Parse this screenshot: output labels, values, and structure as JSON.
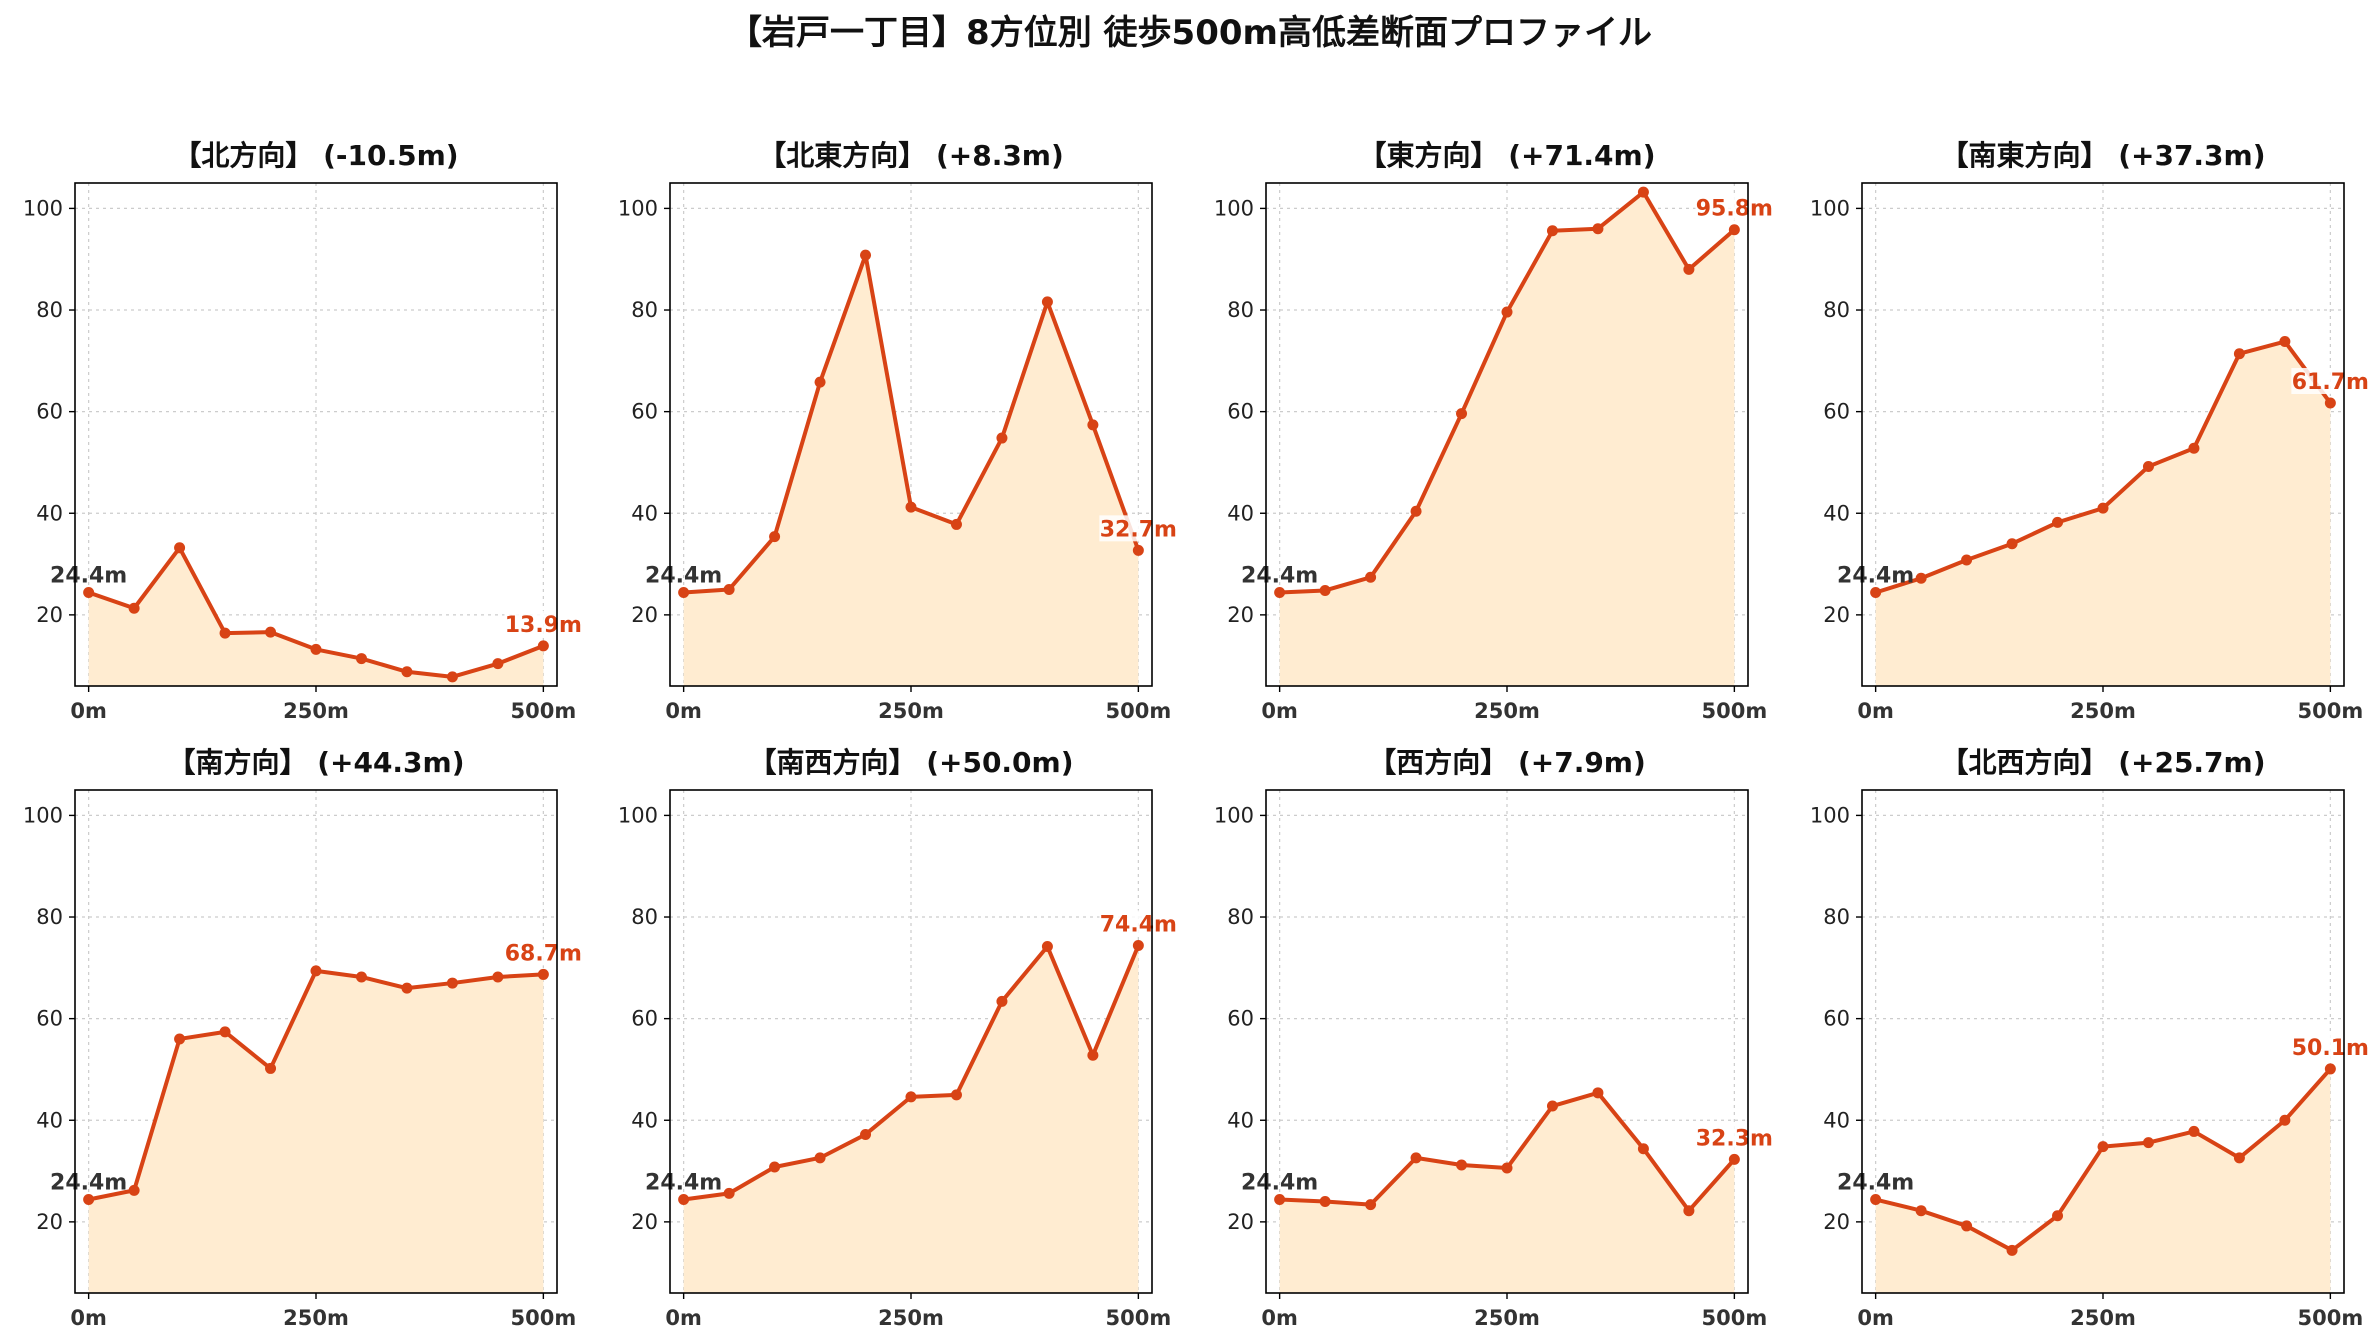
{
  "figure": {
    "title": "【岩戸一丁目】8方位別 徒歩500m高低差断面プロファイル"
  },
  "style": {
    "line_color": "#d84315",
    "fill_color": "#ffecd1",
    "start_label_color": "#333333",
    "end_label_color": "#d84315"
  },
  "chart_data": [
    {
      "type": "area",
      "title": "【北方向】 (-10.5m)",
      "x": [
        0,
        50,
        100,
        150,
        200,
        250,
        300,
        350,
        400,
        450,
        500
      ],
      "series": [
        {
          "values": [
            24.4,
            21.3,
            33.2,
            16.4,
            16.6,
            13.2,
            11.4,
            8.8,
            7.8,
            10.4,
            13.9
          ]
        }
      ],
      "start_label": "24.4m",
      "end_label": "13.9m",
      "x_ticks": [
        "0m",
        "250m",
        "500m"
      ],
      "y_ticks": [
        "20",
        "40",
        "60",
        "80",
        "100"
      ],
      "xlim": [
        -15,
        515
      ],
      "ylim": [
        6,
        105
      ],
      "grid": true
    },
    {
      "type": "area",
      "title": "【北東方向】 (+8.3m)",
      "x": [
        0,
        50,
        100,
        150,
        200,
        250,
        300,
        350,
        400,
        450,
        500
      ],
      "series": [
        {
          "values": [
            24.4,
            25.0,
            35.4,
            65.8,
            90.8,
            41.2,
            37.8,
            54.8,
            81.6,
            57.4,
            32.7
          ]
        }
      ],
      "start_label": "24.4m",
      "end_label": "32.7m",
      "x_ticks": [
        "0m",
        "250m",
        "500m"
      ],
      "y_ticks": [
        "20",
        "40",
        "60",
        "80",
        "100"
      ],
      "xlim": [
        -15,
        515
      ],
      "ylim": [
        6,
        105
      ],
      "grid": true
    },
    {
      "type": "area",
      "title": "【東方向】 (+71.4m)",
      "x": [
        0,
        50,
        100,
        150,
        200,
        250,
        300,
        350,
        400,
        450,
        500
      ],
      "series": [
        {
          "values": [
            24.4,
            24.8,
            27.4,
            40.4,
            59.6,
            79.6,
            95.6,
            96.0,
            103.2,
            88.0,
            95.8
          ]
        }
      ],
      "start_label": "24.4m",
      "end_label": "95.8m",
      "x_ticks": [
        "0m",
        "250m",
        "500m"
      ],
      "y_ticks": [
        "20",
        "40",
        "60",
        "80",
        "100"
      ],
      "xlim": [
        -15,
        515
      ],
      "ylim": [
        6,
        105
      ],
      "grid": true
    },
    {
      "type": "area",
      "title": "【南東方向】 (+37.3m)",
      "x": [
        0,
        50,
        100,
        150,
        200,
        250,
        300,
        350,
        400,
        450,
        500
      ],
      "series": [
        {
          "values": [
            24.4,
            27.2,
            30.8,
            34.0,
            38.2,
            41.0,
            49.2,
            52.8,
            71.4,
            73.8,
            61.7
          ]
        }
      ],
      "start_label": "24.4m",
      "end_label": "61.7m",
      "x_ticks": [
        "0m",
        "250m",
        "500m"
      ],
      "y_ticks": [
        "20",
        "40",
        "60",
        "80",
        "100"
      ],
      "xlim": [
        -15,
        515
      ],
      "ylim": [
        6,
        105
      ],
      "grid": true
    },
    {
      "type": "area",
      "title": "【南方向】 (+44.3m)",
      "x": [
        0,
        50,
        100,
        150,
        200,
        250,
        300,
        350,
        400,
        450,
        500
      ],
      "series": [
        {
          "values": [
            24.4,
            26.2,
            56.0,
            57.4,
            50.2,
            69.4,
            68.2,
            66.0,
            67.0,
            68.2,
            68.7
          ]
        }
      ],
      "start_label": "24.4m",
      "end_label": "68.7m",
      "x_ticks": [
        "0m",
        "250m",
        "500m"
      ],
      "y_ticks": [
        "20",
        "40",
        "60",
        "80",
        "100"
      ],
      "xlim": [
        -15,
        515
      ],
      "ylim": [
        6,
        105
      ],
      "grid": true
    },
    {
      "type": "area",
      "title": "【南西方向】 (+50.0m)",
      "x": [
        0,
        50,
        100,
        150,
        200,
        250,
        300,
        350,
        400,
        450,
        500
      ],
      "series": [
        {
          "values": [
            24.4,
            25.6,
            30.8,
            32.6,
            37.2,
            44.6,
            45.0,
            63.4,
            74.2,
            52.8,
            74.4
          ]
        }
      ],
      "start_label": "24.4m",
      "end_label": "74.4m",
      "x_ticks": [
        "0m",
        "250m",
        "500m"
      ],
      "y_ticks": [
        "20",
        "40",
        "60",
        "80",
        "100"
      ],
      "xlim": [
        -15,
        515
      ],
      "ylim": [
        6,
        105
      ],
      "grid": true
    },
    {
      "type": "area",
      "title": "【西方向】 (+7.9m)",
      "x": [
        0,
        50,
        100,
        150,
        200,
        250,
        300,
        350,
        400,
        450,
        500
      ],
      "series": [
        {
          "values": [
            24.4,
            24.0,
            23.4,
            32.6,
            31.2,
            30.6,
            42.8,
            45.4,
            34.4,
            22.2,
            32.3
          ]
        }
      ],
      "start_label": "24.4m",
      "end_label": "32.3m",
      "x_ticks": [
        "0m",
        "250m",
        "500m"
      ],
      "y_ticks": [
        "20",
        "40",
        "60",
        "80",
        "100"
      ],
      "xlim": [
        -15,
        515
      ],
      "ylim": [
        6,
        105
      ],
      "grid": true
    },
    {
      "type": "area",
      "title": "【北西方向】 (+25.7m)",
      "x": [
        0,
        50,
        100,
        150,
        200,
        250,
        300,
        350,
        400,
        450,
        500
      ],
      "series": [
        {
          "values": [
            24.4,
            22.2,
            19.2,
            14.4,
            21.2,
            34.8,
            35.6,
            37.8,
            32.6,
            40.0,
            50.1
          ]
        }
      ],
      "start_label": "24.4m",
      "end_label": "50.1m",
      "x_ticks": [
        "0m",
        "250m",
        "500m"
      ],
      "y_ticks": [
        "20",
        "40",
        "60",
        "80",
        "100"
      ],
      "xlim": [
        -15,
        515
      ],
      "ylim": [
        6,
        105
      ],
      "grid": true
    }
  ]
}
